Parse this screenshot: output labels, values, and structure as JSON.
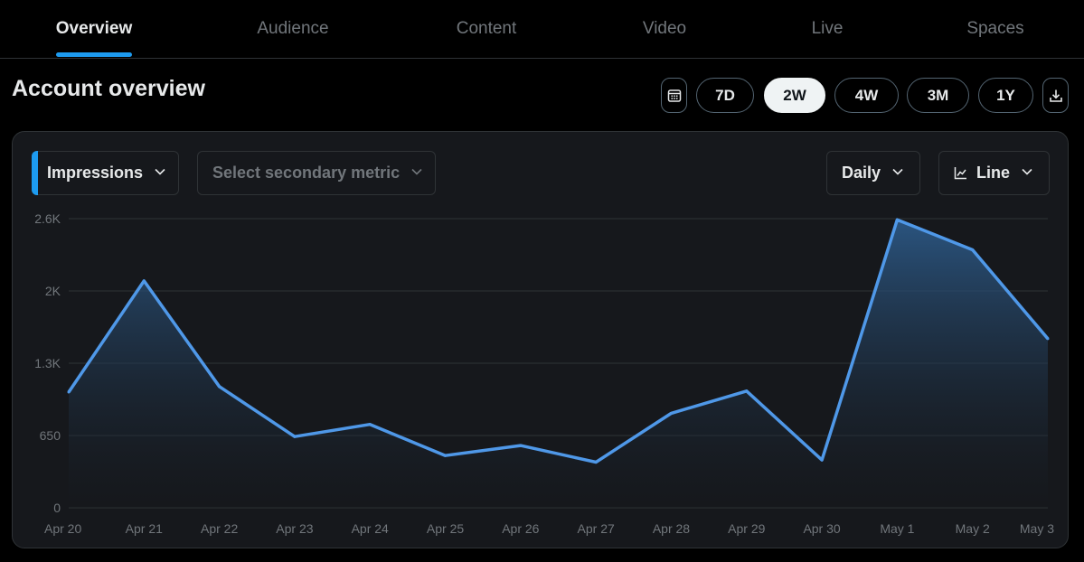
{
  "tabs": [
    {
      "label": "Overview",
      "active": true
    },
    {
      "label": "Audience",
      "active": false
    },
    {
      "label": "Content",
      "active": false
    },
    {
      "label": "Video",
      "active": false
    },
    {
      "label": "Live",
      "active": false
    },
    {
      "label": "Spaces",
      "active": false
    }
  ],
  "header": {
    "title": "Account overview",
    "calendar_icon": "calendar-icon",
    "ranges": [
      "7D",
      "2W",
      "4W",
      "3M",
      "1Y"
    ],
    "selected_range": "2W",
    "download_icon": "download-icon"
  },
  "controls": {
    "primary_metric": "Impressions",
    "secondary_metric_placeholder": "Select secondary metric",
    "interval": "Daily",
    "chart_type": "Line"
  },
  "colors": {
    "accent": "#1d9bf0",
    "line": "#4f98e8",
    "background": "#000000",
    "card": "#16181c"
  },
  "chart_data": {
    "type": "area",
    "categories": [
      "Apr 20",
      "Apr 21",
      "Apr 22",
      "Apr 23",
      "Apr 24",
      "Apr 25",
      "Apr 26",
      "Apr 27",
      "Apr 28",
      "Apr 29",
      "Apr 30",
      "May 1",
      "May 2",
      "May 3"
    ],
    "series": [
      {
        "name": "Impressions",
        "values": [
          1040,
          2040,
          1090,
          640,
          750,
          470,
          560,
          410,
          850,
          1050,
          430,
          2590,
          2320,
          1520
        ]
      }
    ],
    "yticks": [
      {
        "value": 0,
        "label": "0"
      },
      {
        "value": 650,
        "label": "650"
      },
      {
        "value": 1300,
        "label": "1.3K"
      },
      {
        "value": 1950,
        "label": "2K"
      },
      {
        "value": 2600,
        "label": "2.6K"
      }
    ],
    "ylim": [
      0,
      2600
    ],
    "grid": true
  }
}
